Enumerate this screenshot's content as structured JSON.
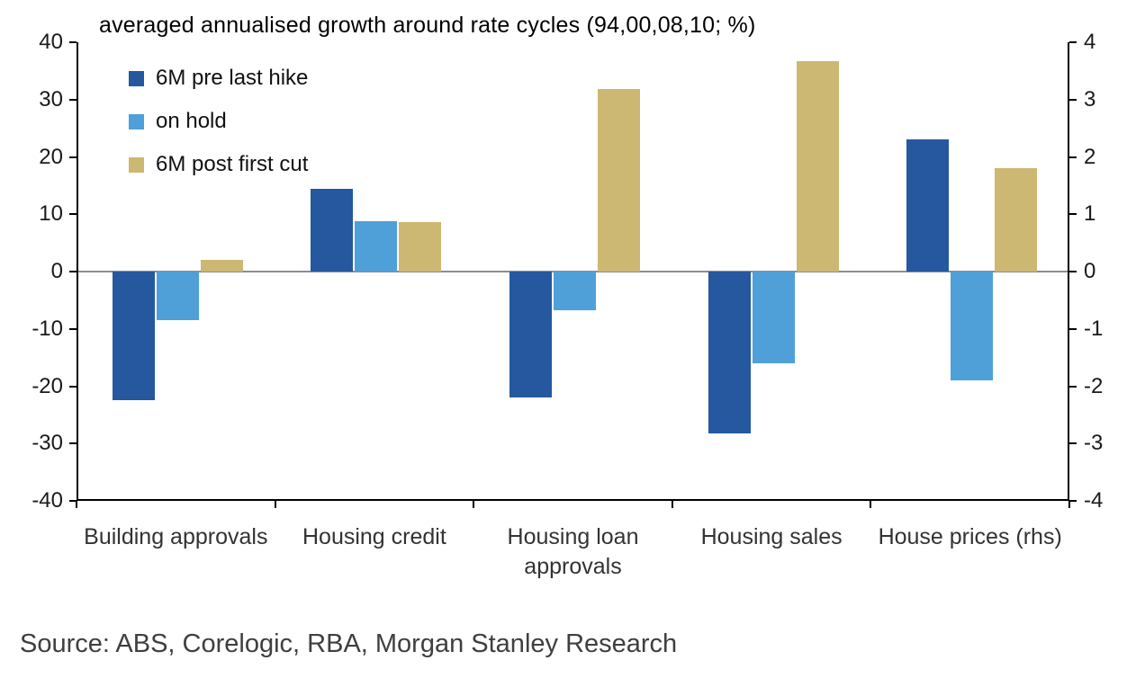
{
  "chart_data": {
    "type": "bar",
    "title": "averaged annualised growth around rate cycles (94,00,08,10; %)",
    "categories": [
      "Building approvals",
      "Housing credit",
      "Housing loan approvals",
      "Housing sales",
      "House prices (rhs)"
    ],
    "series": [
      {
        "name": "6M pre last hike",
        "color": "#25589f",
        "values": [
          -22.5,
          14.5,
          -22.0,
          -28.2,
          2.3
        ]
      },
      {
        "name": "on hold",
        "color": "#4f9fd9",
        "values": [
          -8.5,
          8.8,
          -6.8,
          -16.0,
          -1.9
        ]
      },
      {
        "name": "6M post first cut",
        "color": "#ccb873",
        "values": [
          2.0,
          8.7,
          31.8,
          36.7,
          1.8
        ]
      }
    ],
    "left_axis": {
      "min": -40,
      "max": 40,
      "step": 10,
      "ticks": [
        40,
        30,
        20,
        10,
        0,
        -10,
        -20,
        -30,
        -40
      ]
    },
    "right_axis": {
      "min": -4,
      "max": 4,
      "step": 1,
      "ticks": [
        4,
        3,
        2,
        1,
        0,
        -1,
        -2,
        -3,
        -4
      ],
      "category_indices": [
        4
      ]
    },
    "legend_position": "top-left",
    "grid": false,
    "zero_line": true
  },
  "source_note": "Source: ABS, Corelogic, RBA, Morgan Stanley Research"
}
